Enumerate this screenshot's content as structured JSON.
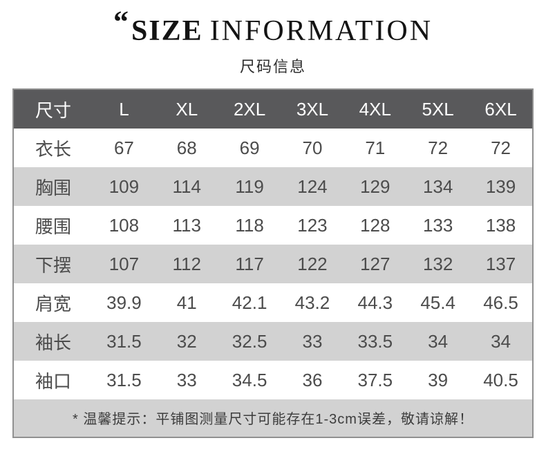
{
  "page": {
    "title_quote": "“",
    "title_primary": "SIZE",
    "title_secondary": "INFORMATION",
    "subtitle": "尺码信息"
  },
  "chart_data": {
    "type": "table",
    "title": "SIZE INFORMATION",
    "subtitle": "尺码信息",
    "columns": [
      "尺寸",
      "L",
      "XL",
      "2XL",
      "3XL",
      "4XL",
      "5XL",
      "6XL"
    ],
    "rows": [
      [
        "衣长",
        "67",
        "68",
        "69",
        "70",
        "71",
        "72",
        "72"
      ],
      [
        "胸围",
        "109",
        "114",
        "119",
        "124",
        "129",
        "134",
        "139"
      ],
      [
        "腰围",
        "108",
        "113",
        "118",
        "123",
        "128",
        "133",
        "138"
      ],
      [
        "下摆",
        "107",
        "112",
        "117",
        "122",
        "127",
        "132",
        "137"
      ],
      [
        "肩宽",
        "39.9",
        "41",
        "42.1",
        "43.2",
        "44.3",
        "45.4",
        "46.5"
      ],
      [
        "袖长",
        "31.5",
        "32",
        "32.5",
        "33",
        "33.5",
        "34",
        "34"
      ],
      [
        "袖口",
        "31.5",
        "33",
        "34.5",
        "36",
        "37.5",
        "39",
        "40.5"
      ]
    ],
    "note": "* 温馨提示：平铺图测量尺寸可能存在1-3cm误差，敬请谅解！"
  },
  "colors": {
    "header_bg": "#59595b",
    "header_text": "#ffffff",
    "alt_row_bg": "#d2d2d2",
    "note_bg": "#d2d2d2",
    "body_text": "#4c4c4c",
    "border": "#909090"
  }
}
